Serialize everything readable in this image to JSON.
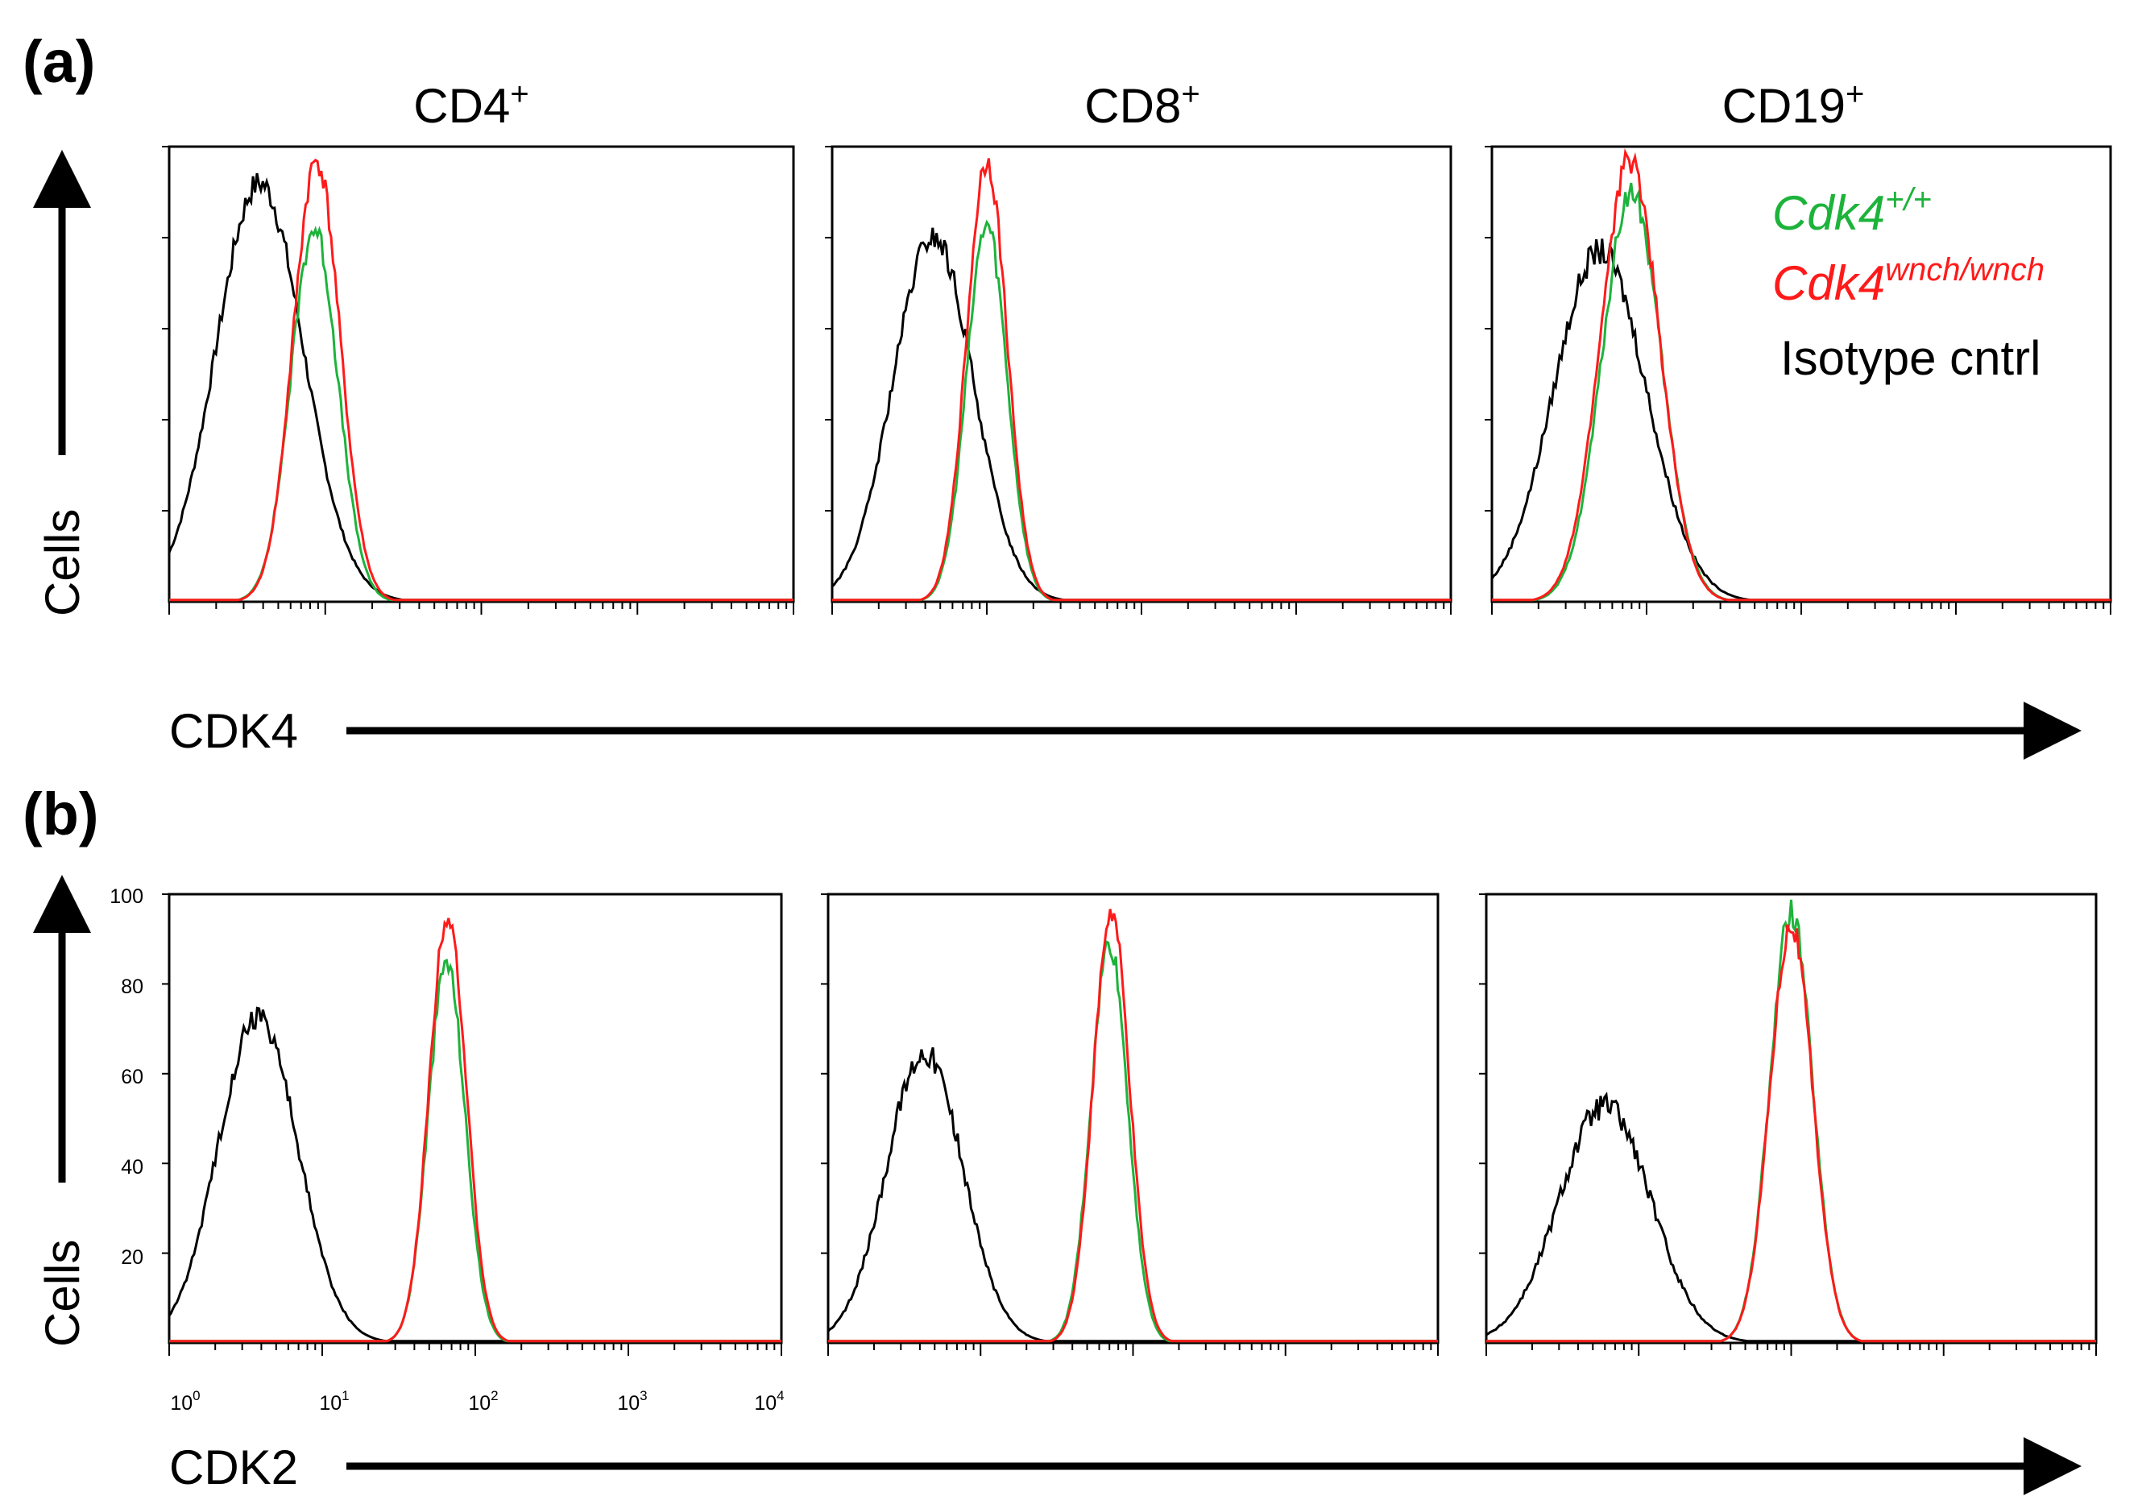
{
  "panel_labels": [
    "(a)",
    "(b)"
  ],
  "column_titles": [
    {
      "base": "CD4",
      "sup": "+"
    },
    {
      "base": "CD8",
      "sup": "+"
    },
    {
      "base": "CD19",
      "sup": "+"
    }
  ],
  "axis_labels": {
    "y": "Cells",
    "x_a": "CDK4",
    "x_b": "CDK2"
  },
  "legend": [
    {
      "base": "Cdk4",
      "sup": "+/+",
      "color": "#1db33b",
      "italic": true
    },
    {
      "base": "Cdk4",
      "sup": "wnch/wnch",
      "color": "#ff1a1a",
      "italic": true
    },
    {
      "base": "Isotype cntrl",
      "sup": "",
      "color": "#000000",
      "italic": false
    }
  ],
  "colors": {
    "wt": "#1db33b",
    "wnch": "#ff1a1a",
    "isotype": "#000000"
  },
  "y_ticks": [
    "100",
    "80",
    "60",
    "40",
    "20"
  ],
  "x_ticks": [
    {
      "base": "10",
      "sup": "0"
    },
    {
      "base": "10",
      "sup": "1"
    },
    {
      "base": "10",
      "sup": "2"
    },
    {
      "base": "10",
      "sup": "3"
    },
    {
      "base": "10",
      "sup": "4"
    }
  ],
  "chart_data": [
    {
      "type": "line",
      "panel": "(a)",
      "title": "CD4+",
      "xlabel": "CDK4",
      "ylabel": "Cells",
      "x_scale": "log",
      "xlim": [
        1,
        10000
      ],
      "ylim": [
        0,
        100
      ],
      "series": [
        {
          "name": "Isotype cntrl",
          "peak_x": 3.8,
          "peak_y": 92,
          "width": 0.28
        },
        {
          "name": "Cdk4+/+",
          "peak_x": 8.5,
          "peak_y": 82,
          "width": 0.15
        },
        {
          "name": "Cdk4wnch/wnch",
          "peak_x": 8.8,
          "peak_y": 97,
          "width": 0.15
        }
      ]
    },
    {
      "type": "line",
      "panel": "(a)",
      "title": "CD8+",
      "xlabel": "CDK4",
      "ylabel": "Cells",
      "x_scale": "log",
      "xlim": [
        1,
        10000
      ],
      "ylim": [
        0,
        100
      ],
      "series": [
        {
          "name": "Isotype cntrl",
          "peak_x": 4.5,
          "peak_y": 80,
          "width": 0.26
        },
        {
          "name": "Cdk4+/+",
          "peak_x": 10,
          "peak_y": 83,
          "width": 0.13
        },
        {
          "name": "Cdk4wnch/wnch",
          "peak_x": 10,
          "peak_y": 97,
          "width": 0.13
        }
      ]
    },
    {
      "type": "line",
      "panel": "(a)",
      "title": "CD19+",
      "xlabel": "CDK4",
      "ylabel": "Cells",
      "x_scale": "log",
      "xlim": [
        1,
        10000
      ],
      "ylim": [
        0,
        100
      ],
      "series": [
        {
          "name": "Isotype cntrl",
          "peak_x": 5,
          "peak_y": 77,
          "width": 0.3
        },
        {
          "name": "Cdk4+/+",
          "peak_x": 8,
          "peak_y": 90,
          "width": 0.19
        },
        {
          "name": "Cdk4wnch/wnch",
          "peak_x": 7.8,
          "peak_y": 97,
          "width": 0.19
        }
      ]
    },
    {
      "type": "line",
      "panel": "(b)",
      "title": "CD4+",
      "xlabel": "CDK2",
      "ylabel": "Cells",
      "x_scale": "log",
      "xlim": [
        1,
        10000
      ],
      "ylim": [
        0,
        100
      ],
      "series": [
        {
          "name": "Isotype cntrl",
          "peak_x": 3.8,
          "peak_y": 73,
          "width": 0.26
        },
        {
          "name": "Cdk4+/+",
          "peak_x": 65,
          "peak_y": 85,
          "width": 0.12
        },
        {
          "name": "Cdk4wnch/wnch",
          "peak_x": 66,
          "peak_y": 96,
          "width": 0.12
        }
      ]
    },
    {
      "type": "line",
      "panel": "(b)",
      "title": "CD8+",
      "xlabel": "CDK2",
      "ylabel": "Cells",
      "x_scale": "log",
      "xlim": [
        1,
        10000
      ],
      "ylim": [
        0,
        100
      ],
      "series": [
        {
          "name": "Isotype cntrl",
          "peak_x": 4.3,
          "peak_y": 65,
          "width": 0.25
        },
        {
          "name": "Cdk4+/+",
          "peak_x": 70,
          "peak_y": 89,
          "width": 0.12
        },
        {
          "name": "Cdk4wnch/wnch",
          "peak_x": 72,
          "peak_y": 96,
          "width": 0.12
        }
      ]
    },
    {
      "type": "line",
      "panel": "(b)",
      "title": "CD19+",
      "xlabel": "CDK2",
      "ylabel": "Cells",
      "x_scale": "log",
      "xlim": [
        1,
        10000
      ],
      "ylim": [
        0,
        100
      ],
      "series": [
        {
          "name": "Isotype cntrl",
          "peak_x": 6,
          "peak_y": 53,
          "width": 0.3
        },
        {
          "name": "Cdk4+/+",
          "peak_x": 100,
          "peak_y": 96,
          "width": 0.14
        },
        {
          "name": "Cdk4wnch/wnch",
          "peak_x": 100,
          "peak_y": 93,
          "width": 0.14
        }
      ]
    }
  ]
}
